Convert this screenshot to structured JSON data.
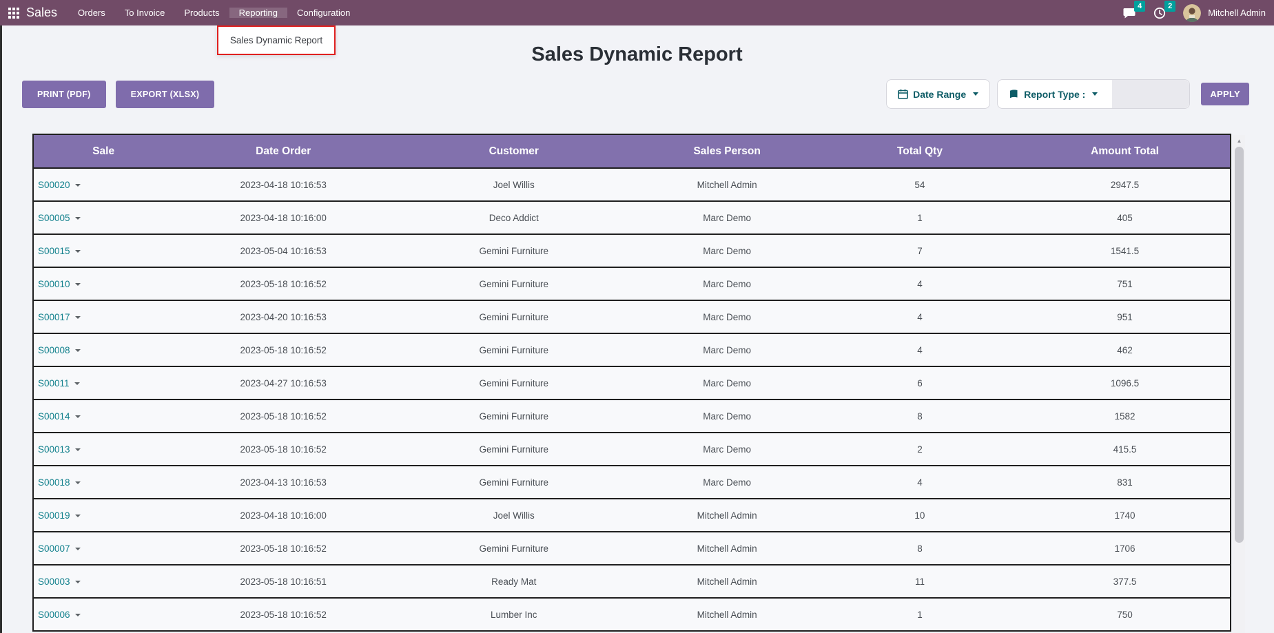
{
  "navbar": {
    "app_name": "Sales",
    "menu_items": [
      {
        "label": "Orders",
        "active": false
      },
      {
        "label": "To Invoice",
        "active": false
      },
      {
        "label": "Products",
        "active": false
      },
      {
        "label": "Reporting",
        "active": true
      },
      {
        "label": "Configuration",
        "active": false
      }
    ],
    "messages_badge": "4",
    "activities_badge": "2",
    "user_name": "Mitchell Admin"
  },
  "reporting_menu": {
    "items": [
      {
        "label": "Sales Dynamic Report"
      }
    ]
  },
  "page": {
    "title": "Sales Dynamic Report"
  },
  "toolbar": {
    "print_label": "PRINT (PDF)",
    "export_label": "EXPORT (XLSX)",
    "date_range_label": "Date Range",
    "report_type_label": "Report Type :",
    "apply_label": "APPLY"
  },
  "table": {
    "columns": [
      "Sale",
      "Date Order",
      "Customer",
      "Sales Person",
      "Total Qty",
      "Amount Total"
    ],
    "rows": [
      {
        "sale": "S00020",
        "date_order": "2023-04-18 10:16:53",
        "customer": "Joel Willis",
        "sales_person": "Mitchell Admin",
        "total_qty": "54",
        "amount_total": "2947.5"
      },
      {
        "sale": "S00005",
        "date_order": "2023-04-18 10:16:00",
        "customer": "Deco Addict",
        "sales_person": "Marc Demo",
        "total_qty": "1",
        "amount_total": "405"
      },
      {
        "sale": "S00015",
        "date_order": "2023-05-04 10:16:53",
        "customer": "Gemini Furniture",
        "sales_person": "Marc Demo",
        "total_qty": "7",
        "amount_total": "1541.5"
      },
      {
        "sale": "S00010",
        "date_order": "2023-05-18 10:16:52",
        "customer": "Gemini Furniture",
        "sales_person": "Marc Demo",
        "total_qty": "4",
        "amount_total": "751"
      },
      {
        "sale": "S00017",
        "date_order": "2023-04-20 10:16:53",
        "customer": "Gemini Furniture",
        "sales_person": "Marc Demo",
        "total_qty": "4",
        "amount_total": "951"
      },
      {
        "sale": "S00008",
        "date_order": "2023-05-18 10:16:52",
        "customer": "Gemini Furniture",
        "sales_person": "Marc Demo",
        "total_qty": "4",
        "amount_total": "462"
      },
      {
        "sale": "S00011",
        "date_order": "2023-04-27 10:16:53",
        "customer": "Gemini Furniture",
        "sales_person": "Marc Demo",
        "total_qty": "6",
        "amount_total": "1096.5"
      },
      {
        "sale": "S00014",
        "date_order": "2023-05-18 10:16:52",
        "customer": "Gemini Furniture",
        "sales_person": "Marc Demo",
        "total_qty": "8",
        "amount_total": "1582"
      },
      {
        "sale": "S00013",
        "date_order": "2023-05-18 10:16:52",
        "customer": "Gemini Furniture",
        "sales_person": "Marc Demo",
        "total_qty": "2",
        "amount_total": "415.5"
      },
      {
        "sale": "S00018",
        "date_order": "2023-04-13 10:16:53",
        "customer": "Gemini Furniture",
        "sales_person": "Marc Demo",
        "total_qty": "4",
        "amount_total": "831"
      },
      {
        "sale": "S00019",
        "date_order": "2023-04-18 10:16:00",
        "customer": "Joel Willis",
        "sales_person": "Mitchell Admin",
        "total_qty": "10",
        "amount_total": "1740"
      },
      {
        "sale": "S00007",
        "date_order": "2023-05-18 10:16:52",
        "customer": "Gemini Furniture",
        "sales_person": "Mitchell Admin",
        "total_qty": "8",
        "amount_total": "1706"
      },
      {
        "sale": "S00003",
        "date_order": "2023-05-18 10:16:51",
        "customer": "Ready Mat",
        "sales_person": "Mitchell Admin",
        "total_qty": "11",
        "amount_total": "377.5"
      },
      {
        "sale": "S00006",
        "date_order": "2023-05-18 10:16:52",
        "customer": "Lumber Inc",
        "sales_person": "Mitchell Admin",
        "total_qty": "1",
        "amount_total": "750"
      }
    ]
  },
  "colors": {
    "navbar_bg": "#714B67",
    "accent_purple": "#8271AD",
    "badge_teal": "#00A09D",
    "link_teal": "#11808C",
    "filter_text_teal": "#0D5C66",
    "annotation_red": "#E0201F"
  }
}
